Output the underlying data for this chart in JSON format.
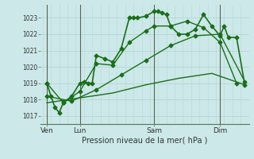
{
  "title": "Pression niveau de la mer( hPa )",
  "background_color": "#cce8e8",
  "grid_color": "#b8d8d8",
  "line_color": "#1a6e1a",
  "ylim": [
    1016.5,
    1023.8
  ],
  "yticks": [
    1017,
    1018,
    1019,
    1020,
    1021,
    1022,
    1023
  ],
  "xlim": [
    -0.5,
    50
  ],
  "xtick_positions": [
    1,
    9,
    27,
    43
  ],
  "xtick_labels": [
    "Ven",
    "Lun",
    "Sam",
    "Dim"
  ],
  "vline_positions": [
    1,
    9,
    27,
    43
  ],
  "series": [
    {
      "x": [
        1,
        2,
        3,
        4,
        5,
        7,
        9,
        10,
        11,
        12,
        13,
        15,
        17,
        19,
        21,
        22,
        23,
        25,
        27,
        28,
        29,
        30,
        31,
        33,
        35,
        37,
        39,
        41,
        43,
        44,
        45,
        47,
        49
      ],
      "y": [
        1019.0,
        1018.2,
        1017.5,
        1017.2,
        1017.8,
        1018.2,
        1019.0,
        1019.1,
        1019.0,
        1019.0,
        1020.7,
        1020.5,
        1020.3,
        1021.1,
        1023.0,
        1023.0,
        1023.0,
        1023.1,
        1023.4,
        1023.4,
        1023.3,
        1023.2,
        1022.5,
        1022.0,
        1022.0,
        1022.3,
        1023.2,
        1022.5,
        1021.9,
        1022.5,
        1021.8,
        1021.8,
        1018.9
      ],
      "marker": "D",
      "markersize": 2.5,
      "linewidth": 1.2
    },
    {
      "x": [
        1,
        5,
        9,
        13,
        17,
        21,
        25,
        27,
        31,
        35,
        39,
        43,
        47
      ],
      "y": [
        1019.0,
        1017.8,
        1018.5,
        1020.2,
        1020.1,
        1021.5,
        1022.2,
        1022.5,
        1022.5,
        1022.8,
        1022.4,
        1021.5,
        1019.0
      ],
      "marker": "D",
      "markersize": 2.5,
      "linewidth": 1.0
    },
    {
      "x": [
        1,
        7,
        13,
        19,
        25,
        31,
        37,
        43,
        49
      ],
      "y": [
        1018.2,
        1017.9,
        1018.6,
        1019.5,
        1020.4,
        1021.3,
        1021.9,
        1022.0,
        1019.1
      ],
      "marker": "D",
      "markersize": 2.5,
      "linewidth": 1.0
    },
    {
      "x": [
        1,
        9,
        17,
        25,
        33,
        41,
        49
      ],
      "y": [
        1017.8,
        1018.1,
        1018.4,
        1018.9,
        1019.3,
        1019.6,
        1018.9
      ],
      "marker": null,
      "markersize": 0,
      "linewidth": 1.0
    }
  ]
}
